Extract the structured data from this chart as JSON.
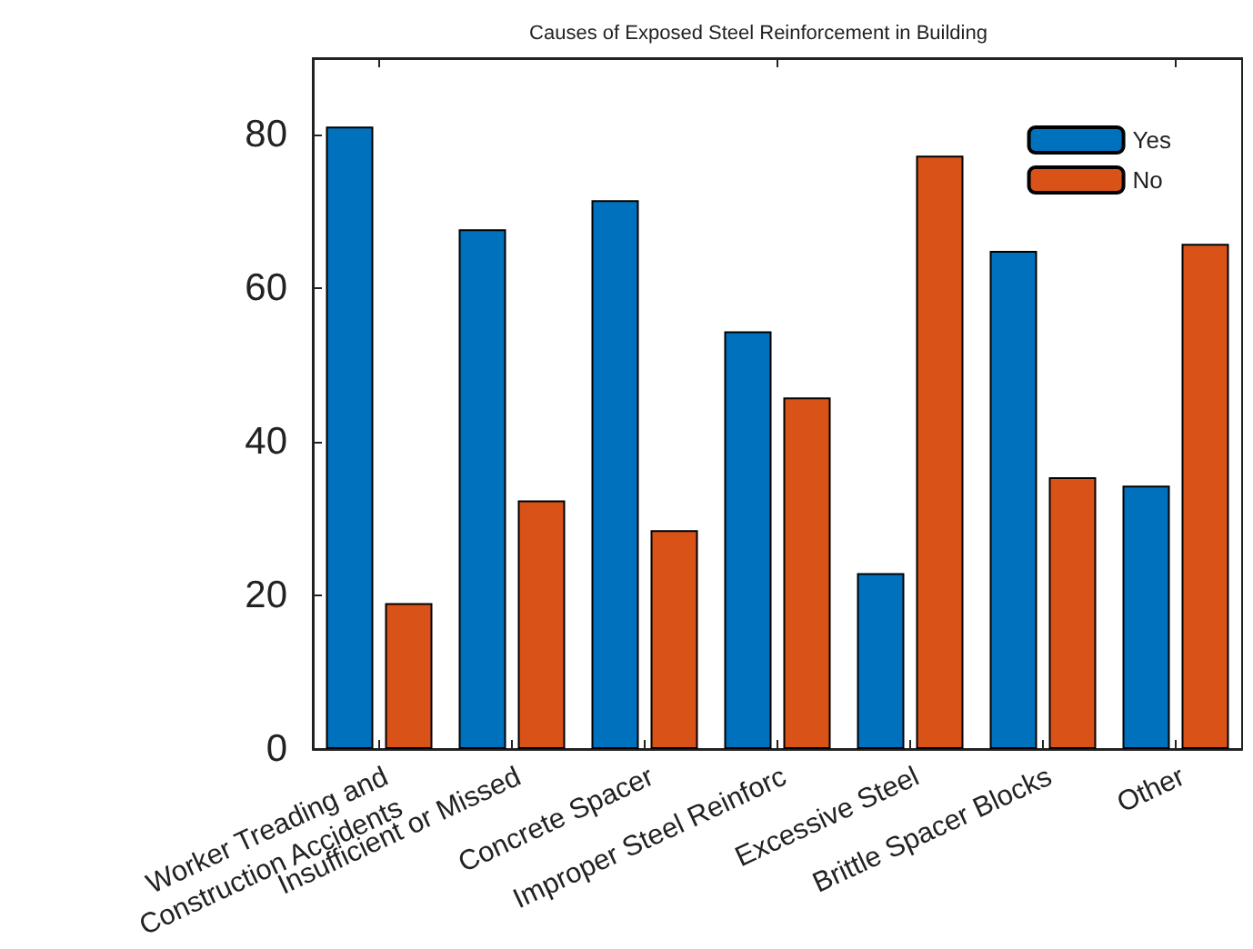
{
  "chart_data": {
    "type": "bar",
    "title": "Causes of Exposed Steel Reinforcement in Building",
    "categories": [
      "Worker Treading and\nConstruction Accidents",
      "Insufficient or Missed",
      "Concrete Spacer",
      "Improper Steel Reinforc",
      "Excessive Steel",
      "Brittle Spacer Blocks",
      "Other"
    ],
    "series": [
      {
        "name": "Yes",
        "color": "#0072bd",
        "values": [
          81.1,
          67.7,
          71.5,
          54.4,
          22.9,
          64.9,
          34.3
        ]
      },
      {
        "name": "No",
        "color": "#d95319",
        "values": [
          19.0,
          32.4,
          28.5,
          45.8,
          77.3,
          35.4,
          65.8
        ]
      }
    ],
    "ylim": [
      0,
      90
    ],
    "yticks": [
      0,
      20,
      40,
      60,
      80
    ],
    "grid": false,
    "legend": "top right"
  }
}
